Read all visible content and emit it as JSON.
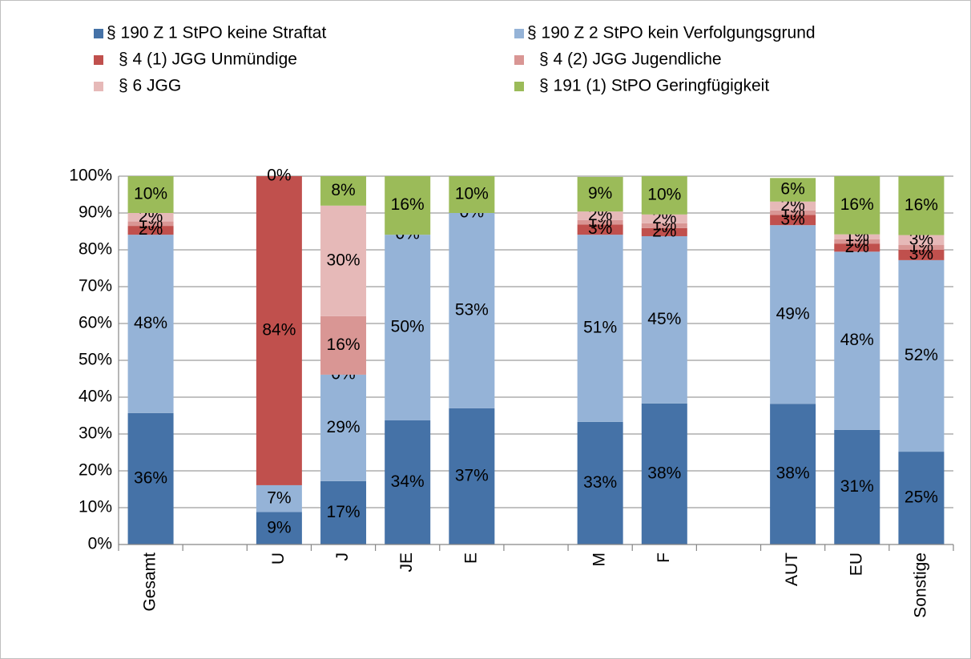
{
  "chart_data": {
    "type": "stacked_bar",
    "categories": [
      "Gesamt",
      null,
      "U",
      "J",
      "JE",
      "E",
      null,
      "M",
      "F",
      null,
      "AUT",
      "EU",
      "Sonstige"
    ],
    "series": [
      {
        "name": "§ 190 Z 1 StPO keine Straftat",
        "color": "#4572a7",
        "values": [
          35.7,
          null,
          8.8,
          17.2,
          33.7,
          37.0,
          null,
          33.3,
          38.3,
          null,
          38.2,
          31.1,
          25.2
        ],
        "value_labels": [
          "36%",
          null,
          "9%",
          "17%",
          "34%",
          "37%",
          null,
          "33%",
          "38%",
          null,
          "38%",
          "31%",
          "25%"
        ]
      },
      {
        "name": "§ 190 Z 2 StPO kein Verfolgungsgrund",
        "color": "#95b3d7",
        "values": [
          48.4,
          null,
          7.3,
          28.9,
          50.4,
          53.0,
          null,
          50.8,
          45.4,
          null,
          48.5,
          48.4,
          52.0
        ],
        "value_labels": [
          "48%",
          null,
          "7%",
          "29%",
          "50%",
          "53%",
          null,
          "51%",
          "45%",
          null,
          "49%",
          "48%",
          "52%"
        ]
      },
      {
        "name": "§ 4 (1) JGG Unmündige",
        "color": "#c0504d",
        "values": [
          2.4,
          null,
          83.9,
          0,
          0,
          0,
          null,
          2.8,
          2.2,
          null,
          2.8,
          2.2,
          2.8
        ],
        "value_labels": [
          "2%",
          null,
          "84%",
          "0%",
          "0%",
          "0%",
          null,
          "3%",
          "2%",
          null,
          "3%",
          "2%",
          "3%"
        ]
      },
      {
        "name": "§ 4 (2) JGG Jugendliche",
        "color": "#d99694",
        "values": [
          1.2,
          null,
          null,
          15.9,
          null,
          null,
          null,
          1.2,
          1.3,
          null,
          1.2,
          1.2,
          1.3
        ],
        "value_labels": [
          "1%",
          null,
          null,
          "16%",
          null,
          null,
          null,
          "1%",
          "1%",
          null,
          "1%",
          "1%",
          "1%"
        ]
      },
      {
        "name": "§ 6 JGG",
        "color": "#e6b9b8",
        "values": [
          2.3,
          null,
          null,
          30.0,
          null,
          null,
          null,
          2.3,
          2.4,
          null,
          2.4,
          1.3,
          2.7
        ],
        "value_labels": [
          "2%",
          null,
          null,
          "30%",
          null,
          null,
          null,
          "2%",
          "2%",
          null,
          "2%",
          "1%",
          "3%"
        ]
      },
      {
        "name": "§ 191 (1) StPO Geringfügigkeit",
        "color": "#9bbb59",
        "values": [
          10.0,
          null,
          0,
          8.0,
          15.9,
          10.0,
          null,
          9.4,
          10.4,
          null,
          6.4,
          15.8,
          16.0
        ],
        "value_labels": [
          "10%",
          null,
          "0%",
          "8%",
          "16%",
          "10%",
          null,
          "9%",
          "10%",
          null,
          "6%",
          "16%",
          "16%"
        ]
      }
    ],
    "ylim": [
      0,
      100
    ],
    "yticks": [
      {
        "value": 0,
        "label": "0%"
      },
      {
        "value": 10,
        "label": "10%"
      },
      {
        "value": 20,
        "label": "20%"
      },
      {
        "value": 30,
        "label": "30%"
      },
      {
        "value": 40,
        "label": "40%"
      },
      {
        "value": 50,
        "label": "50%"
      },
      {
        "value": 60,
        "label": "60%"
      },
      {
        "value": 70,
        "label": "70%"
      },
      {
        "value": 80,
        "label": "80%"
      },
      {
        "value": 90,
        "label": "90%"
      },
      {
        "value": 100,
        "label": "100%"
      }
    ],
    "grid": true,
    "legend": "top"
  }
}
